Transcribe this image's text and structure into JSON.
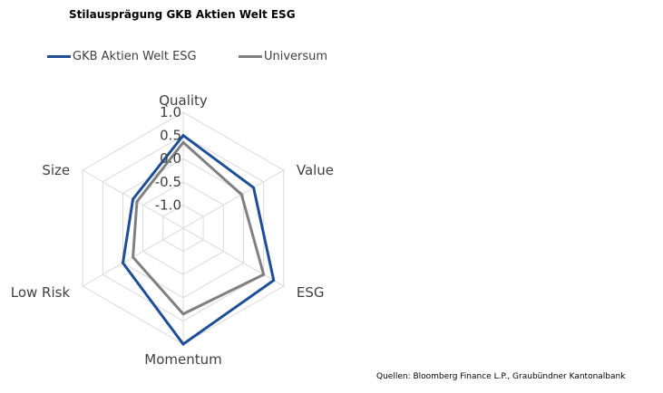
{
  "header": {
    "title": "Stilausprägung GKB Aktien Welt ESG"
  },
  "legend": {
    "items": [
      {
        "label": "GKB Aktien Welt ESG",
        "color": "#1F4E96"
      },
      {
        "label": "Universum",
        "color": "#808080"
      }
    ]
  },
  "footer": {
    "source": "Quellen: Bloomberg Finance L.P., Graubündner Kantonalbank"
  },
  "chart_data": {
    "type": "radar",
    "title": "Stilausprägung GKB Aktien Welt ESG",
    "axes": [
      "Quality",
      "Value",
      "ESG",
      "Momentum",
      "Low Risk",
      "Size"
    ],
    "ticks": [
      "1.0",
      "0.5",
      "0.0",
      "-0.5",
      "-1.0"
    ],
    "tick_values": [
      1.0,
      0.5,
      0.0,
      -0.5,
      -1.0
    ],
    "rlim": [
      -1.5,
      1.0
    ],
    "grid": true,
    "legend_position": "top-left",
    "series": [
      {
        "name": "GKB Aktien Welt ESG",
        "color": "#1F4E96",
        "values": [
          0.5,
          0.25,
          0.75,
          1.0,
          0.0,
          -0.25
        ]
      },
      {
        "name": "Universum",
        "color": "#808080",
        "values": [
          0.35,
          -0.05,
          0.5,
          0.35,
          -0.25,
          -0.35
        ]
      }
    ]
  }
}
